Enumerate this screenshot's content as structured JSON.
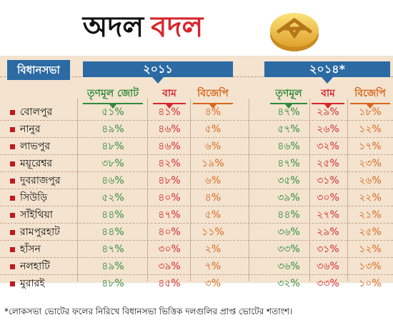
{
  "title": {
    "part1": "অদল",
    "part2": "বদল"
  },
  "colors": {
    "header_blue": "#2b6aa3",
    "tmc_green": "#2f8a3a",
    "left_red": "#d6262b",
    "bjp_orange": "#d9661c",
    "band": "#f3e3cf"
  },
  "header": {
    "constituency_label": "বিধানসভা",
    "year_2011": "২০১১",
    "year_2014": "২০১৪*"
  },
  "columns_2011": {
    "tmc": "তৃণমূল জোট",
    "left": "বাম",
    "bjp": "বিজেপি"
  },
  "columns_2014": {
    "tmc": "তৃণমূল",
    "left": "বাম",
    "bjp": "বিজেপি"
  },
  "rows": [
    {
      "name": "বোলপুর",
      "y2011": [
        "৫১%",
        "৪১%",
        "৪%"
      ],
      "y2014": [
        "৪৭%",
        "২৯%",
        "১৮%"
      ]
    },
    {
      "name": "নানুর",
      "y2011": [
        "৪৯%",
        "৪৬%",
        "৫%"
      ],
      "y2014": [
        "৫৭%",
        "২৬%",
        "১২%"
      ]
    },
    {
      "name": "লাভপুর",
      "y2011": [
        "৪৮%",
        "৪৬%",
        "৬%"
      ],
      "y2014": [
        "৪৬%",
        "৩২%",
        "১৭%"
      ]
    },
    {
      "name": "ময়ূরেশ্বর",
      "y2011": [
        "৩৮%",
        "৪২%",
        "১৯%"
      ],
      "y2014": [
        "৪৭%",
        "২৫%",
        "২৩%"
      ]
    },
    {
      "name": "দুবরাজপুর",
      "y2011": [
        "৪৬%",
        "৪৮%",
        "৬%"
      ],
      "y2014": [
        "৩৫%",
        "৩১%",
        "২৬%"
      ]
    },
    {
      "name": "সিউড়ি",
      "y2011": [
        "৫২%",
        "৪০%",
        "৪%"
      ],
      "y2014": [
        "৩৯%",
        "৩০%",
        "২২%"
      ]
    },
    {
      "name": "সাঁইথিয়া",
      "y2011": [
        "৪৪%",
        "৪৭%",
        "৫%"
      ],
      "y2014": [
        "৪৪%",
        "২৭%",
        "২১%"
      ]
    },
    {
      "name": "রামপুরহাট",
      "y2011": [
        "৪৪%",
        "৪০%",
        "১১%"
      ],
      "y2014": [
        "৩৬%",
        "২৯%",
        "২৫%"
      ]
    },
    {
      "name": "হাঁসন",
      "y2011": [
        "৪৭%",
        "৩০%",
        "২%"
      ],
      "y2014": [
        "৩৩%",
        "৩১%",
        "১২%"
      ]
    },
    {
      "name": "নলহাটি",
      "y2011": [
        "৪৯%",
        "৩৯%",
        "৭%"
      ],
      "y2014": [
        "৩৬%",
        "৩৬%",
        "১৩%"
      ]
    },
    {
      "name": "মুরারই",
      "y2011": [
        "৪৮%",
        "৪৫%",
        "৩%"
      ],
      "y2014": [
        "৩২%",
        "৩৩%",
        "১০%"
      ]
    }
  ],
  "footnote": "*লোকসভা ভোটের ফলের নিরিখে বিধানসভা ভিত্তিক দলগুলির প্রাপ্ত ভোটের শতাংশ।"
}
